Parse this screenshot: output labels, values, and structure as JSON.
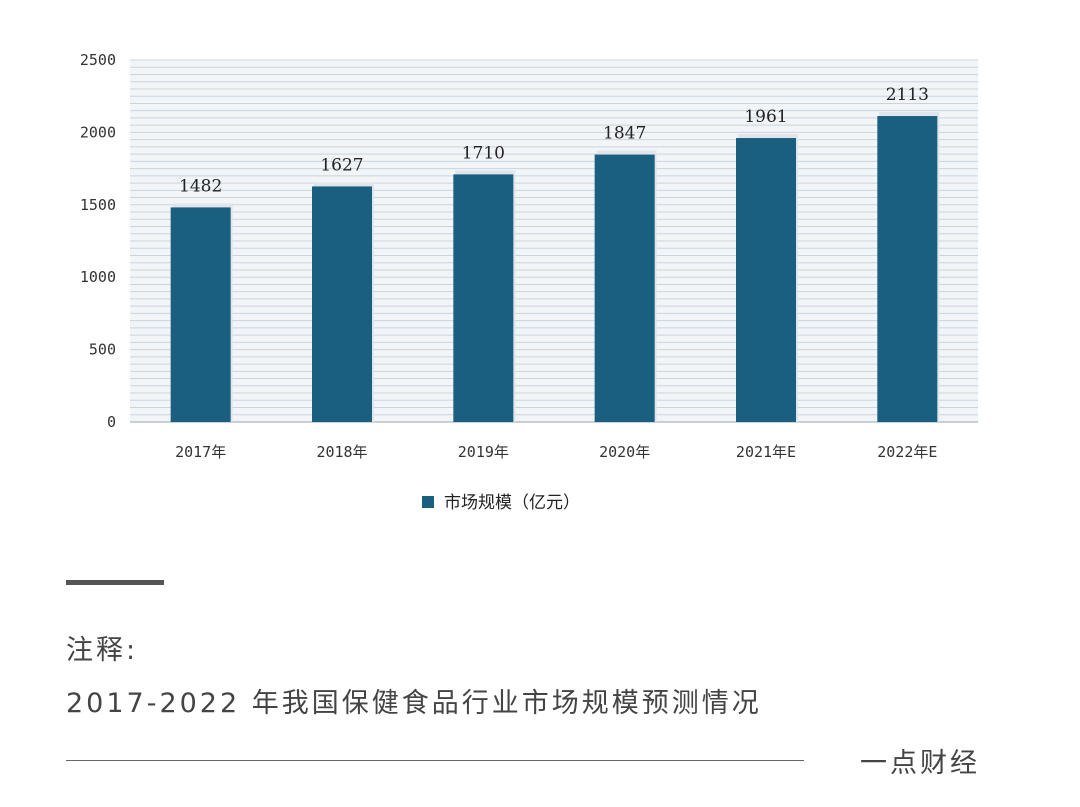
{
  "chart_data": {
    "type": "bar",
    "categories": [
      "2017年",
      "2018年",
      "2019年",
      "2020年",
      "2021年E",
      "2022年E"
    ],
    "series": [
      {
        "name": "市场规模（亿元）",
        "values": [
          1482,
          1627,
          1710,
          1847,
          1961,
          2113
        ]
      }
    ],
    "yticks": [
      0,
      500,
      1000,
      1500,
      2000,
      2500
    ],
    "ylim": [
      0,
      2500
    ],
    "grid": true,
    "legend_position": "bottom",
    "colors": {
      "bar": "#1a5e80",
      "plot_background": "#f2f5f8",
      "gridline": "#c9d3dd"
    }
  },
  "note": {
    "title": "注释:",
    "text": "2017-2022 年我国保健食品行业市场规模预测情况"
  },
  "footer": {
    "source": "一点财经"
  }
}
